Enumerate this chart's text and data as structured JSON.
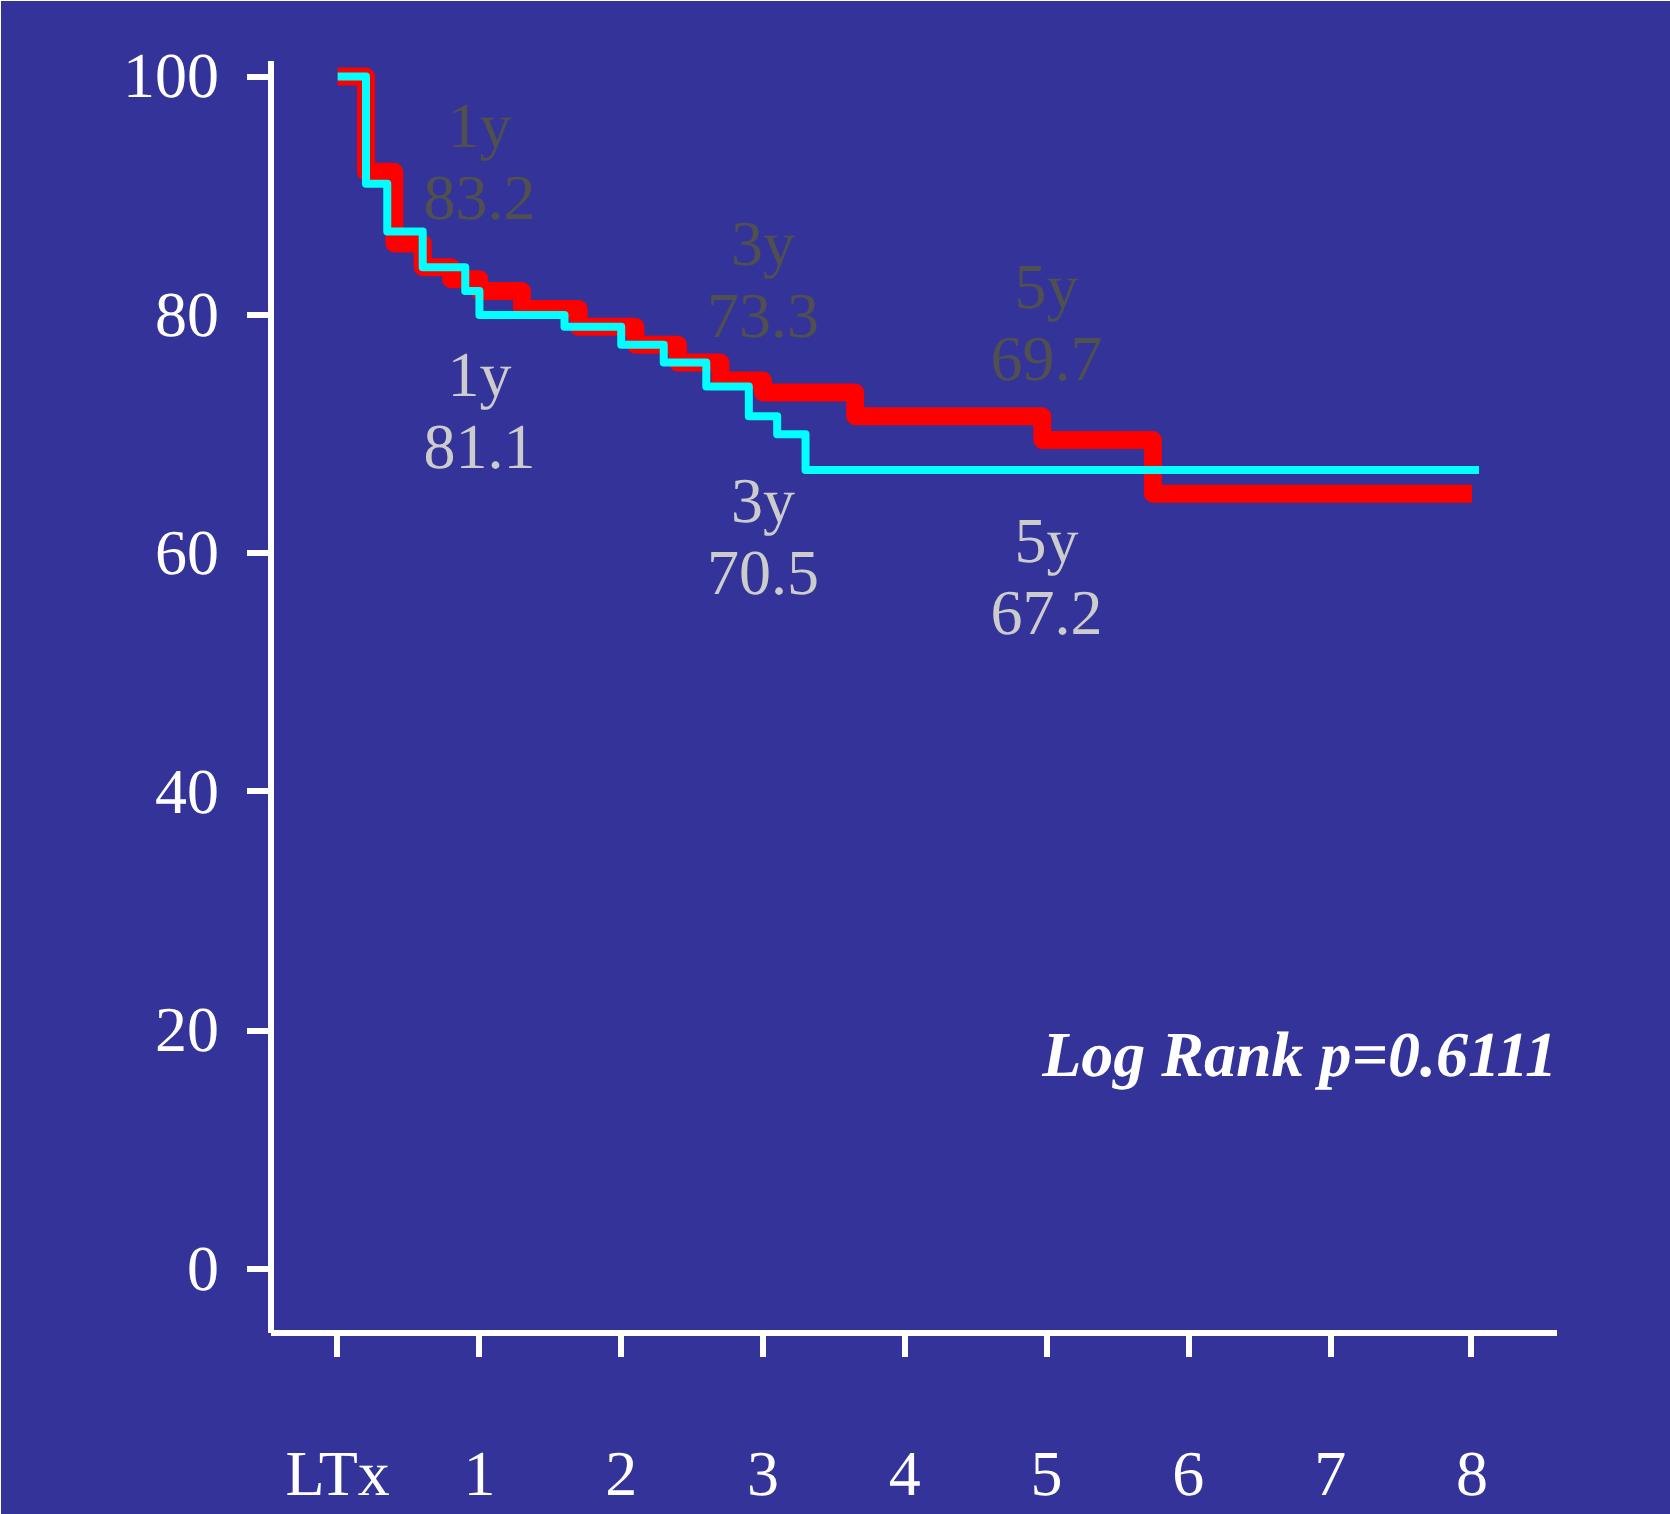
{
  "chart_data": {
    "type": "step",
    "series": [
      {
        "color": "#ff0000",
        "x": [
          0,
          0.2,
          0.4,
          0.6,
          0.8,
          1.0,
          1.3,
          1.7,
          2.1,
          2.4,
          2.7,
          3.0,
          3.65,
          4.97,
          5.75,
          8.0
        ],
        "values": [
          100,
          92,
          86,
          84,
          83,
          82,
          80.5,
          79,
          77.5,
          76,
          74.5,
          73.5,
          71.5,
          69.5,
          65,
          65
        ]
      },
      {
        "color": "#00ffff",
        "x": [
          0,
          0.2,
          0.35,
          0.6,
          0.9,
          1.0,
          1.6,
          2.0,
          2.3,
          2.6,
          2.9,
          3.1,
          3.3,
          8.05
        ],
        "values": [
          100,
          91,
          87,
          84,
          82,
          80,
          79,
          77.5,
          76,
          74,
          71.5,
          70,
          67,
          67
        ]
      }
    ],
    "xlim": [
      -0.47,
      8.6
    ],
    "ylim": [
      -5.4,
      101.3
    ],
    "xticks": [
      {
        "value": 0,
        "label": "LTx"
      },
      1,
      2,
      3,
      4,
      5,
      6,
      7,
      8
    ],
    "yticks": [
      0,
      20,
      40,
      60,
      80,
      100
    ],
    "grid": false,
    "annotations": [
      {
        "text": "1y\n83.2",
        "x": 1,
        "y": 83.2
      },
      {
        "text": "3y\n73.3",
        "x": 3,
        "y": 73.3
      },
      {
        "text": "5y\n69.7",
        "x": 5,
        "y": 69.7
      },
      {
        "text": "1y\n81.1",
        "x": 1,
        "y": 81.1
      },
      {
        "text": "3y\n70.5",
        "x": 3,
        "y": 70.5
      },
      {
        "text": "5y\n67.2",
        "x": 5,
        "y": 67.2
      },
      "Log Rank p=0.6111"
    ]
  }
}
